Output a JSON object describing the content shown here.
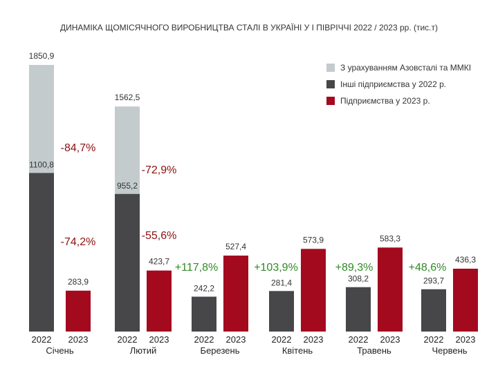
{
  "chart_data": {
    "type": "bar",
    "title": "ДИНАМІКА ЩОМІСЯЧНОГО ВИРОБНИЦТВА СТАЛІ В УКРАЇНІ У І ПІВРІЧЧІ 2022 / 2023 рр. (тис.т)",
    "categories": [
      "Січень",
      "Лютий",
      "Березень",
      "Квітень",
      "Травень",
      "Червень"
    ],
    "year_labels": [
      "2022",
      "2023"
    ],
    "series": [
      {
        "name": "З урахуванням Азовсталі та ММКІ",
        "year": "2022",
        "values": [
          1850.9,
          1562.5,
          null,
          null,
          null,
          null
        ],
        "labels": [
          "1850,9",
          "1562,5",
          "",
          "",
          "",
          ""
        ]
      },
      {
        "name": "Інші підприємства у 2022 р.",
        "year": "2022",
        "values": [
          1100.8,
          955.2,
          242.2,
          281.4,
          308.2,
          293.7
        ],
        "labels": [
          "1100,8",
          "955,2",
          "242,2",
          "281,4",
          "308,2",
          "293,7"
        ]
      },
      {
        "name": "Підприємства у 2023 р.",
        "year": "2023",
        "values": [
          283.9,
          423.7,
          527.4,
          573.9,
          583.3,
          436.3
        ],
        "labels": [
          "283,9",
          "423,7",
          "527,4",
          "573,9",
          "583,3",
          "436,3"
        ]
      }
    ],
    "changes_vs_total": [
      "-84,7%",
      "-72,9%",
      "",
      "",
      "",
      ""
    ],
    "changes_vs_other": [
      "-74,2%",
      "-55,6%",
      "+117,8%",
      "+103,9%",
      "+89,3%",
      "+48,6%"
    ],
    "ylim": [
      0,
      1850.9
    ],
    "grid": false,
    "legend_position": "top-right",
    "colors": {
      "total": "#c4cbcd",
      "other": "#474749",
      "y2023": "#a40a1e",
      "negative": "#8b0f10",
      "positive": "#2f8a25"
    }
  }
}
